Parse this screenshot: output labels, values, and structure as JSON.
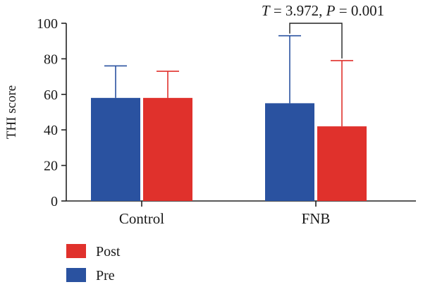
{
  "chart_data": {
    "type": "bar",
    "ylabel": "THI score",
    "xlabel": "",
    "ylim": [
      0,
      100
    ],
    "yticks": [
      0,
      20,
      40,
      60,
      80,
      100
    ],
    "categories": [
      "Control",
      "FNB"
    ],
    "series": [
      {
        "name": "Pre",
        "color": "#2a52a0",
        "values": [
          58,
          55
        ],
        "errors": [
          18,
          38
        ]
      },
      {
        "name": "Post",
        "color": "#e0312c",
        "values": [
          58,
          42
        ],
        "errors": [
          15,
          37
        ]
      }
    ],
    "legend": {
      "placement": "bottom-left",
      "order": [
        "Post",
        "Pre"
      ]
    },
    "annotation": {
      "italic_T": "T",
      "t_value": " = 3.972, ",
      "italic_P": "P",
      "p_value": " = 0.001",
      "bracket_between": [
        "FNB Pre",
        "FNB Post"
      ]
    }
  }
}
